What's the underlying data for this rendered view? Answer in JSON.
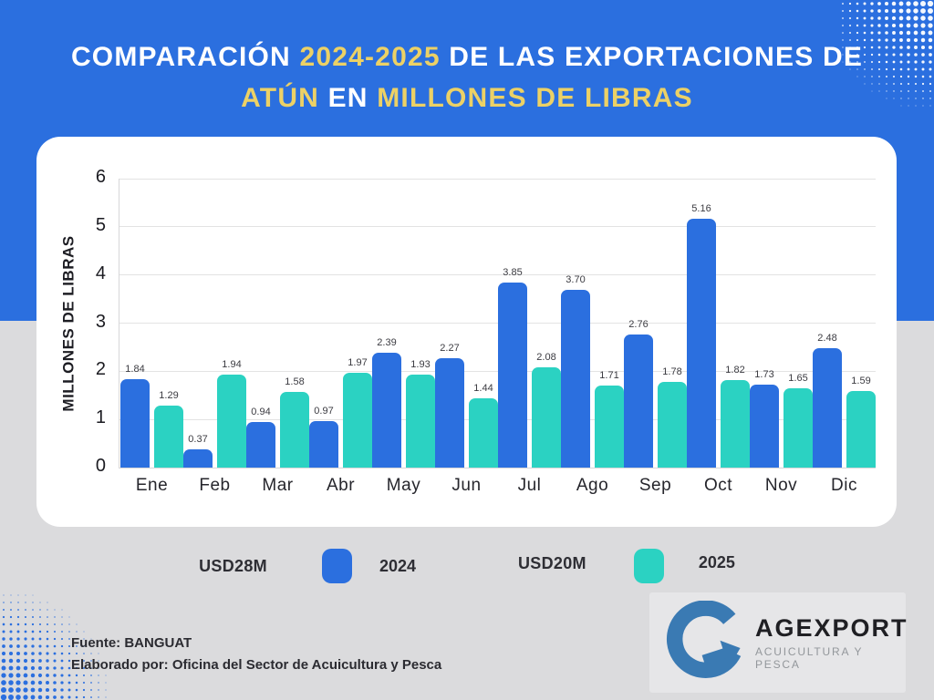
{
  "title": {
    "line1_parts": [
      "COMPARACIÓN ",
      "2024-2025",
      " DE LAS EXPORTACIONES DE"
    ],
    "line2_parts": [
      "ATÚN",
      " EN ",
      "MILLONES DE LIBRAS"
    ]
  },
  "chart_data": {
    "type": "bar",
    "title": "COMPARACIÓN 2024-2025 DE LAS EXPORTACIONES DE ATÚN EN MILLONES DE LIBRAS",
    "ylabel": "MILLONES DE LIBRAS",
    "xlabel": "",
    "ylim": [
      0,
      6
    ],
    "yticks": [
      0,
      1,
      2,
      3,
      4,
      5,
      6
    ],
    "grid": true,
    "legend_position": "bottom",
    "categories": [
      "Ene",
      "Feb",
      "Mar",
      "Abr",
      "May",
      "Jun",
      "Jul",
      "Ago",
      "Sep",
      "Oct",
      "Nov",
      "Dic"
    ],
    "series": [
      {
        "name": "2024",
        "color": "#2b6fdf",
        "values": [
          1.84,
          0.37,
          0.94,
          0.97,
          2.39,
          2.27,
          3.85,
          3.7,
          2.76,
          5.16,
          1.73,
          2.48
        ],
        "labels": [
          "1.84",
          "0.37",
          "0.94",
          "0.97",
          "2.39",
          "2.27",
          "3.85",
          "3.70",
          "2.76",
          "5.16",
          "1.73",
          "2.48"
        ]
      },
      {
        "name": "2025",
        "color": "#2bd2c2",
        "values": [
          1.29,
          1.94,
          1.58,
          1.97,
          1.93,
          1.44,
          2.08,
          1.71,
          1.78,
          1.82,
          1.65,
          1.59
        ],
        "labels": [
          "1.29",
          "1.94",
          "1.58",
          "1.97",
          "1.93",
          "1.44",
          "2.08",
          "1.71",
          "1.78",
          "1.82",
          "1.65",
          "1.59"
        ]
      }
    ]
  },
  "legend": {
    "items": [
      {
        "amount": "USD28M",
        "year": "2024",
        "color": "#2b6fdf"
      },
      {
        "amount": "USD20M",
        "year": "2025",
        "color": "#2bd2c2"
      }
    ]
  },
  "footer": {
    "source": "Fuente: BANGUAT",
    "elaborated": "Elaborado por: Oficina del Sector de Acuicultura y Pesca"
  },
  "logo": {
    "name": "AGEXPORT",
    "subtitle": "ACUICULTURA Y PESCA"
  },
  "colors": {
    "header_blue": "#2b6fdf",
    "bar_2024": "#2b6fdf",
    "bar_2025": "#2bd2c2",
    "title_accent_yellow": "#ecd166",
    "background_gray": "#dbdbdd",
    "card_white": "#ffffff",
    "logo_blue": "#3a7ab3"
  }
}
